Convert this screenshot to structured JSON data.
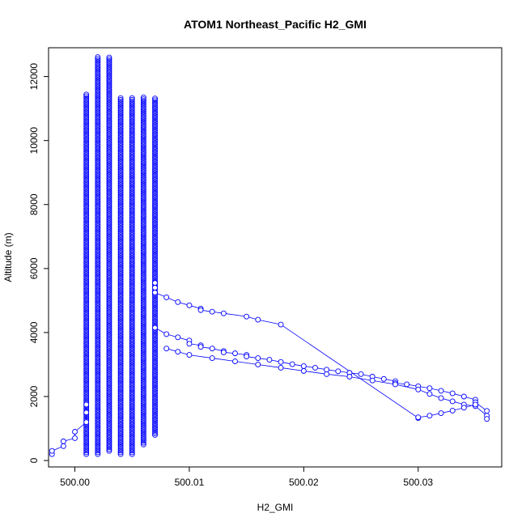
{
  "chart_data": {
    "type": "scatter",
    "title": "ATOM1 Northeast_Pacific H2_GMI",
    "xlabel": "H2_GMI",
    "ylabel": "Altitude (m)",
    "xlim": [
      499.9977,
      500.0373
    ],
    "ylim": [
      -200,
      12900
    ],
    "x_ticks": [
      500.0,
      500.01,
      500.02,
      500.03
    ],
    "x_tick_labels": [
      "500.00",
      "500.01",
      "500.02",
      "500.03"
    ],
    "y_ticks": [
      0,
      2000,
      4000,
      6000,
      8000,
      10000,
      12000
    ],
    "y_tick_labels": [
      "0",
      "2000",
      "4000",
      "6000",
      "8000",
      "10000",
      "12000"
    ],
    "grid": false,
    "legend": "none",
    "marker": "open-circle",
    "color": "#0000ff",
    "columns": [
      {
        "x": 500.001,
        "y_min": 200,
        "y_max": 11450
      },
      {
        "x": 500.002,
        "y_min": 200,
        "y_max": 12650
      },
      {
        "x": 500.003,
        "y_min": 300,
        "y_max": 12650
      },
      {
        "x": 500.004,
        "y_min": 200,
        "y_max": 11350
      },
      {
        "x": 500.005,
        "y_min": 200,
        "y_max": 11350
      },
      {
        "x": 500.006,
        "y_min": 500,
        "y_max": 11350
      },
      {
        "x": 500.007,
        "y_min": 800,
        "y_max": 11350
      }
    ],
    "series": [
      {
        "x": [
          499.998,
          499.998,
          499.999,
          499.999,
          500.0,
          500.0,
          500.001,
          500.001,
          500.001
        ],
        "y": [
          200,
          300,
          450,
          600,
          700,
          900,
          1200,
          1500,
          1750
        ]
      },
      {
        "x": [
          500.007,
          500.007,
          500.007,
          500.008,
          500.009,
          500.01,
          500.011,
          500.011,
          500.012,
          500.013,
          500.015,
          500.016,
          500.018,
          500.03
        ],
        "y": [
          5400,
          5550,
          5250,
          5100,
          4950,
          4850,
          4750,
          4700,
          4650,
          4600,
          4500,
          4400,
          4250,
          1330
        ]
      },
      {
        "x": [
          500.007,
          500.008,
          500.009,
          500.01,
          500.01,
          500.011,
          500.011,
          500.012,
          500.013,
          500.013,
          500.014,
          500.015,
          500.015,
          500.016,
          500.017,
          500.018,
          500.019,
          500.02,
          500.021,
          500.022,
          500.023,
          500.024,
          500.025,
          500.026,
          500.027,
          500.028,
          500.028,
          500.029,
          500.03,
          500.031,
          500.032,
          500.033,
          500.034,
          500.035,
          500.035,
          500.036
        ],
        "y": [
          4150,
          3950,
          3850,
          3750,
          3650,
          3600,
          3550,
          3500,
          3420,
          3380,
          3350,
          3300,
          3250,
          3200,
          3150,
          3080,
          3010,
          2950,
          2900,
          2840,
          2790,
          2740,
          2700,
          2620,
          2550,
          2480,
          2420,
          2380,
          2320,
          2260,
          2180,
          2100,
          2000,
          1900,
          1820,
          1550
        ]
      },
      {
        "x": [
          500.008,
          500.009,
          500.01,
          500.012,
          500.014,
          500.016,
          500.018,
          500.02,
          500.022,
          500.024,
          500.026,
          500.028,
          500.03,
          500.031,
          500.032,
          500.033,
          500.034,
          500.035,
          500.036,
          500.036
        ],
        "y": [
          3500,
          3400,
          3300,
          3200,
          3100,
          3000,
          2900,
          2800,
          2700,
          2620,
          2500,
          2380,
          2220,
          2080,
          1950,
          1850,
          1750,
          1700,
          1400,
          1300
        ]
      },
      {
        "x": [
          500.03,
          500.031,
          500.032,
          500.033,
          500.034,
          500.035
        ],
        "y": [
          1350,
          1400,
          1480,
          1560,
          1650,
          1750
        ]
      }
    ]
  }
}
